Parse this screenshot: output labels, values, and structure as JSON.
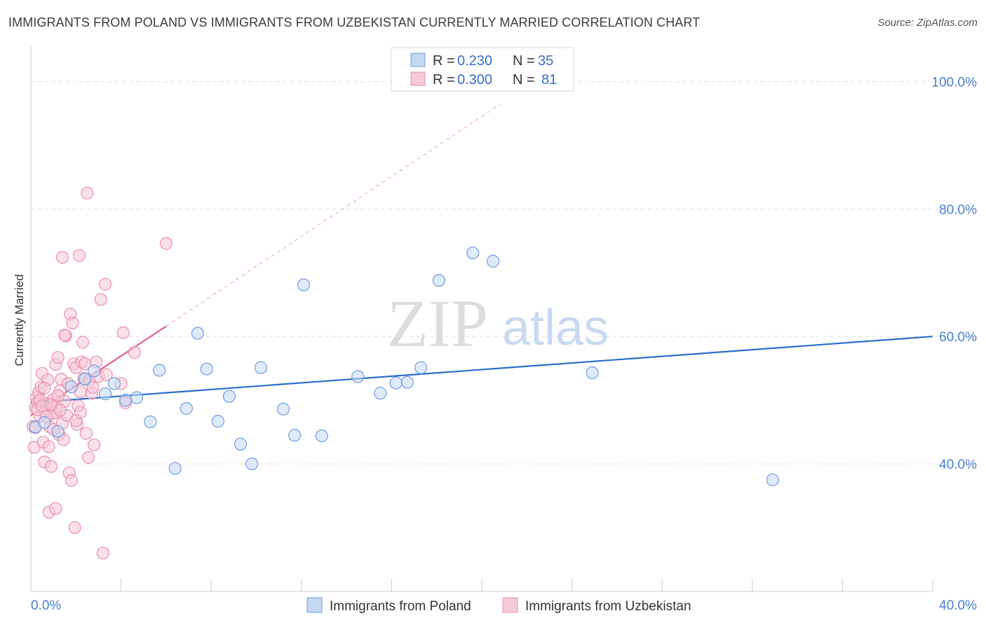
{
  "title": "IMMIGRANTS FROM POLAND VS IMMIGRANTS FROM UZBEKISTAN CURRENTLY MARRIED CORRELATION CHART",
  "source": "Source: ZipAtlas.com",
  "watermark": {
    "zip": "ZIP",
    "atlas": "atlas"
  },
  "chart_data": {
    "type": "scatter",
    "title": "IMMIGRANTS FROM POLAND VS IMMIGRANTS FROM UZBEKISTAN CURRENTLY MARRIED CORRELATION CHART",
    "xlabel": "",
    "ylabel": "Currently Married",
    "xlim": [
      0,
      40
    ],
    "ylim": [
      20,
      104
    ],
    "x_tick_labels": [
      "0.0%",
      "40.0%"
    ],
    "y_ticks": [
      40,
      60,
      80,
      100
    ],
    "y_tick_labels": [
      "40.0%",
      "60.0%",
      "80.0%",
      "100.0%"
    ],
    "grid": true,
    "legend": {
      "placement": "top-center",
      "entries": [
        {
          "r_label": "R =",
          "r_value": "0.230",
          "n_label": "N =",
          "n_value": "35"
        },
        {
          "r_label": "R =",
          "r_value": "0.300",
          "n_label": "N =",
          "n_value": "81"
        }
      ]
    },
    "series": [
      {
        "name": "Immigrants from Poland",
        "color": "#6f9fe0",
        "fill": "#c5d8f3",
        "line_color": "#2b6fcb",
        "trend": {
          "x": [
            0,
            40
          ],
          "y": [
            49.6,
            60.0
          ],
          "dashed_extension": false
        },
        "points": [
          [
            0.2,
            45.8
          ],
          [
            0.6,
            46.5
          ],
          [
            1.2,
            45.1
          ],
          [
            1.8,
            52.1
          ],
          [
            2.4,
            53.3
          ],
          [
            2.8,
            54.6
          ],
          [
            3.3,
            51.0
          ],
          [
            3.7,
            52.6
          ],
          [
            4.2,
            50.0
          ],
          [
            4.7,
            50.4
          ],
          [
            5.3,
            46.6
          ],
          [
            5.7,
            54.7
          ],
          [
            6.4,
            39.3
          ],
          [
            6.9,
            48.7
          ],
          [
            7.4,
            60.5
          ],
          [
            7.8,
            54.9
          ],
          [
            8.3,
            46.7
          ],
          [
            8.8,
            50.6
          ],
          [
            9.3,
            43.1
          ],
          [
            9.8,
            40.0
          ],
          [
            10.2,
            55.1
          ],
          [
            11.2,
            48.6
          ],
          [
            11.7,
            44.5
          ],
          [
            12.1,
            68.1
          ],
          [
            12.9,
            44.4
          ],
          [
            14.5,
            53.7
          ],
          [
            15.5,
            51.1
          ],
          [
            16.2,
            52.7
          ],
          [
            16.7,
            52.8
          ],
          [
            17.3,
            55.1
          ],
          [
            18.1,
            68.8
          ],
          [
            19.6,
            73.1
          ],
          [
            20.5,
            71.8
          ],
          [
            24.9,
            54.3
          ],
          [
            32.9,
            37.5
          ]
        ]
      },
      {
        "name": "Immigrants from Uzbekistan",
        "color": "#e892ad",
        "fill": "#f6c9d7",
        "line_color": "#e0608b",
        "trend": {
          "x": [
            0,
            6.0
          ],
          "y": [
            47.6,
            61.6
          ],
          "dashed_extension": true,
          "extend_to": [
            20.8,
            96.4
          ]
        },
        "points": [
          [
            0.1,
            45.9
          ],
          [
            0.15,
            42.6
          ],
          [
            0.2,
            48.8
          ],
          [
            0.25,
            50.4
          ],
          [
            0.3,
            49.7
          ],
          [
            0.35,
            51.2
          ],
          [
            0.4,
            47.6
          ],
          [
            0.45,
            52.1
          ],
          [
            0.5,
            54.2
          ],
          [
            0.55,
            43.4
          ],
          [
            0.6,
            40.3
          ],
          [
            0.65,
            48.1
          ],
          [
            0.7,
            49.5
          ],
          [
            0.75,
            53.2
          ],
          [
            0.8,
            42.7
          ],
          [
            0.85,
            45.8
          ],
          [
            0.9,
            39.6
          ],
          [
            0.95,
            47.9
          ],
          [
            1.0,
            50.1
          ],
          [
            1.05,
            48.0
          ],
          [
            1.1,
            55.6
          ],
          [
            1.15,
            49.0
          ],
          [
            1.2,
            56.7
          ],
          [
            1.25,
            44.6
          ],
          [
            1.3,
            51.5
          ],
          [
            1.35,
            53.3
          ],
          [
            1.4,
            46.4
          ],
          [
            1.45,
            43.8
          ],
          [
            1.5,
            49.8
          ],
          [
            1.55,
            60.1
          ],
          [
            1.6,
            47.6
          ],
          [
            1.65,
            52.6
          ],
          [
            1.7,
            38.6
          ],
          [
            1.75,
            63.5
          ],
          [
            1.8,
            37.4
          ],
          [
            1.85,
            62.1
          ],
          [
            1.9,
            55.7
          ],
          [
            1.95,
            30.0
          ],
          [
            2.0,
            55.1
          ],
          [
            2.05,
            46.2
          ],
          [
            2.1,
            49.1
          ],
          [
            2.15,
            72.7
          ],
          [
            2.2,
            48.1
          ],
          [
            2.25,
            56.0
          ],
          [
            2.3,
            59.1
          ],
          [
            2.35,
            53.4
          ],
          [
            2.4,
            55.7
          ],
          [
            2.45,
            44.8
          ],
          [
            2.5,
            82.5
          ],
          [
            2.55,
            41.0
          ],
          [
            2.6,
            53.2
          ],
          [
            2.7,
            51.1
          ],
          [
            2.75,
            52.0
          ],
          [
            2.8,
            43.0
          ],
          [
            2.9,
            56.0
          ],
          [
            3.0,
            53.7
          ],
          [
            3.1,
            65.8
          ],
          [
            3.2,
            26.0
          ],
          [
            3.3,
            68.2
          ],
          [
            3.35,
            54.0
          ],
          [
            0.2,
            45.7
          ],
          [
            0.3,
            48.5
          ],
          [
            0.4,
            50.0
          ],
          [
            0.5,
            49.1
          ],
          [
            0.6,
            51.9
          ],
          [
            0.7,
            47.4
          ],
          [
            0.8,
            32.4
          ],
          [
            0.9,
            49.3
          ],
          [
            1.0,
            45.4
          ],
          [
            1.1,
            33.0
          ],
          [
            1.2,
            50.7
          ],
          [
            1.3,
            48.4
          ],
          [
            1.4,
            72.4
          ],
          [
            1.5,
            60.2
          ],
          [
            2.0,
            46.8
          ],
          [
            2.2,
            51.3
          ],
          [
            4.0,
            52.6
          ],
          [
            4.1,
            60.6
          ],
          [
            4.2,
            49.6
          ],
          [
            4.6,
            57.5
          ],
          [
            6.0,
            74.6
          ]
        ]
      }
    ]
  },
  "bottom_legend": [
    "Immigrants from Poland",
    "Immigrants from Uzbekistan"
  ]
}
